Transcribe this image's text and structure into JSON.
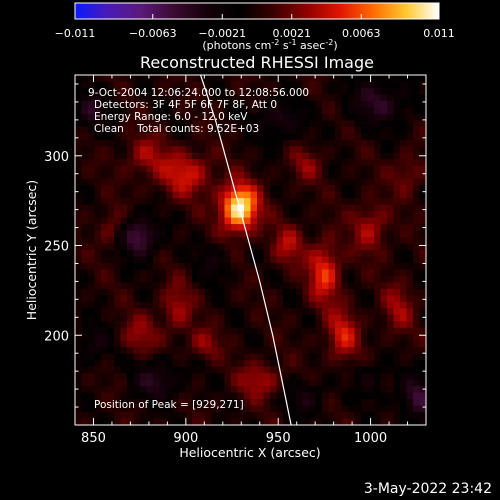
{
  "chart_data": {
    "type": "heatmap",
    "title": "Reconstructed RHESSI Image",
    "xlabel": "Heliocentric X (arcsec)",
    "ylabel": "Heliocentric Y (arcsec)",
    "xlim": [
      840,
      1030
    ],
    "ylim": [
      150,
      345
    ],
    "x_ticks": [
      850,
      900,
      950,
      1000
    ],
    "y_ticks": [
      200,
      250,
      300
    ],
    "x_tick_labels": [
      "850",
      "900",
      "950",
      "1000"
    ],
    "y_tick_labels": [
      "200",
      "250",
      "300"
    ],
    "colorbar": {
      "unit_label": "(photons cm",
      "unit_label_parts": [
        "(photons cm",
        "-2",
        " s",
        "-1",
        " asec",
        "-2",
        ")"
      ],
      "range": [
        -0.011,
        0.011
      ],
      "tick_values": [
        -0.011,
        -0.0063,
        -0.0021,
        0.0021,
        0.0063,
        0.011
      ],
      "tick_labels": [
        "−0.011",
        "−0.0063",
        "−0.0021",
        "0.0021",
        "0.0063",
        "0.011"
      ],
      "colors": [
        "#0a1aff",
        "#4a1ab8",
        "#5a1a78",
        "#3a0a30",
        "#140008",
        "#000000",
        "#3a0000",
        "#900000",
        "#e01400",
        "#ff6a00",
        "#ffc830",
        "#ffffff"
      ]
    },
    "info_lines": [
      "9-Oct-2004 12:06:24.000 to 12:08:56.000",
      "Detectors: 3F 4F 5F 6F 7F 8F, Att 0",
      "Energy Range: 6.0 - 12.0 keV",
      "Clean    Total counts: 9.52E+03"
    ],
    "peak_label": "Position of Peak = [929,271]",
    "peak": {
      "x": 929,
      "y": 271
    },
    "limb_curve": [
      [
        908,
        345
      ],
      [
        916,
        320
      ],
      [
        924,
        290
      ],
      [
        932,
        260
      ],
      [
        940,
        230
      ],
      [
        947,
        200
      ],
      [
        953,
        170
      ],
      [
        957,
        150
      ]
    ],
    "sources": [
      {
        "x": 929,
        "y": 271,
        "sx": 7,
        "sy": 9,
        "amp": 0.011
      },
      {
        "x": 900,
        "y": 290,
        "sx": 10,
        "sy": 9,
        "amp": 0.0045
      },
      {
        "x": 878,
        "y": 300,
        "sx": 8,
        "sy": 8,
        "amp": 0.003
      },
      {
        "x": 975,
        "y": 235,
        "sx": 6,
        "sy": 12,
        "amp": 0.0055
      },
      {
        "x": 985,
        "y": 200,
        "sx": 6,
        "sy": 10,
        "amp": 0.0045
      },
      {
        "x": 1000,
        "y": 260,
        "sx": 7,
        "sy": 10,
        "amp": 0.0035
      },
      {
        "x": 1015,
        "y": 215,
        "sx": 6,
        "sy": 10,
        "amp": 0.003
      },
      {
        "x": 955,
        "y": 250,
        "sx": 6,
        "sy": 8,
        "amp": 0.0035
      },
      {
        "x": 940,
        "y": 175,
        "sx": 8,
        "sy": 7,
        "amp": 0.0035
      },
      {
        "x": 895,
        "y": 215,
        "sx": 6,
        "sy": 10,
        "amp": 0.0032
      },
      {
        "x": 875,
        "y": 200,
        "sx": 7,
        "sy": 8,
        "amp": 0.0028
      },
      {
        "x": 860,
        "y": 260,
        "sx": 5,
        "sy": 8,
        "amp": 0.0025
      },
      {
        "x": 1020,
        "y": 290,
        "sx": 6,
        "sy": 8,
        "amp": 0.0025
      },
      {
        "x": 965,
        "y": 295,
        "sx": 6,
        "sy": 7,
        "amp": 0.0025
      },
      {
        "x": 910,
        "y": 195,
        "sx": 6,
        "sy": 6,
        "amp": 0.0028
      },
      {
        "x": 875,
        "y": 255,
        "sx": 7,
        "sy": 8,
        "amp": -0.006
      },
      {
        "x": 885,
        "y": 175,
        "sx": 9,
        "sy": 8,
        "amp": -0.004
      },
      {
        "x": 1005,
        "y": 330,
        "sx": 12,
        "sy": 9,
        "amp": -0.004
      },
      {
        "x": 950,
        "y": 320,
        "sx": 9,
        "sy": 8,
        "amp": -0.0035
      },
      {
        "x": 1025,
        "y": 165,
        "sx": 7,
        "sy": 9,
        "amp": -0.0045
      },
      {
        "x": 965,
        "y": 165,
        "sx": 7,
        "sy": 7,
        "amp": -0.003
      },
      {
        "x": 850,
        "y": 325,
        "sx": 7,
        "sy": 8,
        "amp": -0.0035
      },
      {
        "x": 850,
        "y": 195,
        "sx": 6,
        "sy": 8,
        "amp": -0.003
      },
      {
        "x": 915,
        "y": 240,
        "sx": 6,
        "sy": 7,
        "amp": -0.0025
      },
      {
        "x": 1000,
        "y": 175,
        "sx": 6,
        "sy": 7,
        "amp": -0.0028
      }
    ]
  },
  "footer": {
    "date_stamp": "3-May-2022 23:42"
  }
}
